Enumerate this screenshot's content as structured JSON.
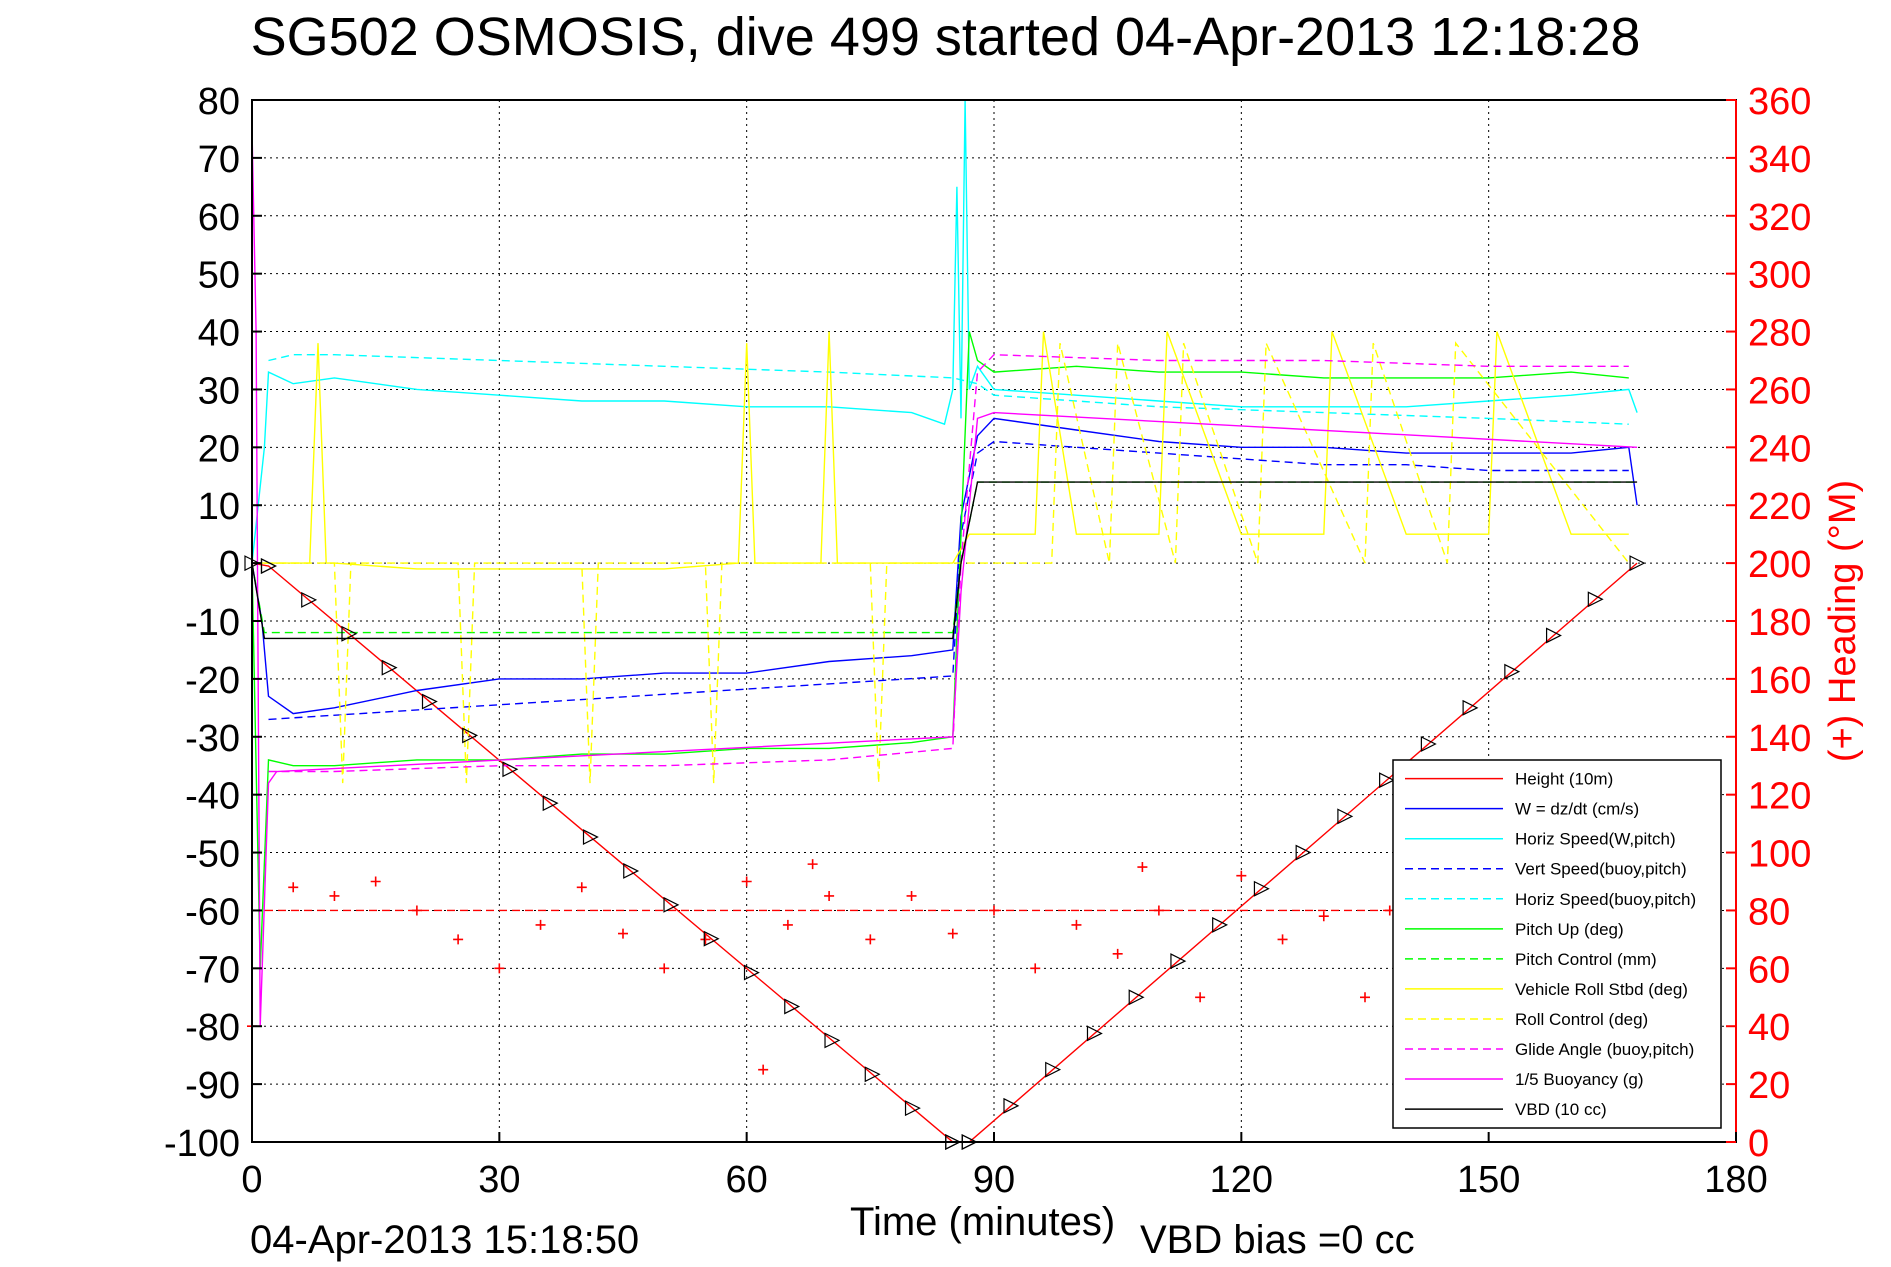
{
  "chart_data": {
    "type": "line",
    "title": "SG502 OSMOSIS, dive 499 started 04-Apr-2013 12:18:28",
    "xlabel": "Time (minutes)",
    "ylabel": "",
    "y2label": "(+) Heading (°M)",
    "xlim": [
      0,
      180
    ],
    "ylim": [
      -100,
      80
    ],
    "y2lim": [
      0,
      360
    ],
    "x_ticks": [
      "0",
      "30",
      "60",
      "90",
      "120",
      "150",
      "180"
    ],
    "y_ticks": [
      "80",
      "70",
      "60",
      "50",
      "40",
      "30",
      "20",
      "10",
      "0",
      "-10",
      "-20",
      "-30",
      "-40",
      "-50",
      "-60",
      "-70",
      "-80",
      "-90",
      "-100"
    ],
    "y2_ticks": [
      "360",
      "340",
      "320",
      "300",
      "280",
      "260",
      "240",
      "220",
      "200",
      "180",
      "160",
      "140",
      "120",
      "100",
      "80",
      "60",
      "40",
      "20",
      "0"
    ],
    "grid": true,
    "legend_position": "lower-right",
    "annotations": {
      "timestamp": "04-Apr-2013 15:18:50",
      "vbd_bias": "VBD bias =0 cc"
    },
    "series": [
      {
        "name": "Height (10m)",
        "color": "#ff0000",
        "style": "solid",
        "x": [
          0,
          2,
          85,
          87,
          168
        ],
        "y": [
          0,
          -0.5,
          -100,
          -100,
          0
        ]
      },
      {
        "name": "W = dz/dt (cm/s)",
        "color": "#0000ff",
        "style": "solid",
        "x": [
          0,
          1.2,
          2,
          5,
          10,
          20,
          30,
          40,
          50,
          60,
          70,
          80,
          85,
          86,
          88,
          90,
          100,
          110,
          120,
          130,
          140,
          150,
          160,
          167,
          168
        ],
        "y": [
          0,
          -10,
          -23,
          -26,
          -25,
          -22,
          -20,
          -20,
          -19,
          -19,
          -17,
          -16,
          -15,
          8,
          22,
          25,
          23,
          21,
          20,
          20,
          19,
          19,
          19,
          20,
          10
        ]
      },
      {
        "name": "Horiz Speed(W,pitch)",
        "color": "#00ffff",
        "style": "solid",
        "x": [
          0,
          1.5,
          2,
          5,
          10,
          20,
          30,
          40,
          50,
          60,
          70,
          80,
          84,
          85,
          85.5,
          86,
          86.5,
          87,
          88,
          90,
          100,
          110,
          120,
          130,
          140,
          150,
          160,
          167,
          168
        ],
        "y": [
          0,
          20,
          33,
          31,
          32,
          30,
          29,
          28,
          28,
          27,
          27,
          26,
          24,
          30,
          65,
          25,
          80,
          30,
          34,
          30,
          29,
          28,
          27,
          27,
          27,
          28,
          29,
          30,
          26
        ]
      },
      {
        "name": "Vert Speed(buoy,pitch)",
        "color": "#0000ff",
        "style": "dashed",
        "x": [
          2,
          85,
          86,
          88,
          90,
          100,
          110,
          120,
          130,
          140,
          150,
          160,
          167
        ],
        "y": [
          -27,
          -19.5,
          5,
          19,
          21,
          20,
          19,
          18,
          17,
          17,
          16,
          16,
          16
        ]
      },
      {
        "name": "Horiz Speed(buoy,pitch)",
        "color": "#00ffff",
        "style": "dashed",
        "x": [
          2,
          5,
          10,
          30,
          50,
          70,
          85,
          88,
          90,
          110,
          130,
          150,
          167
        ],
        "y": [
          35,
          36,
          36,
          35,
          34,
          33,
          32,
          31,
          29,
          27,
          26,
          25,
          24
        ]
      },
      {
        "name": "Pitch Up (deg)",
        "color": "#00ff00",
        "style": "solid",
        "x": [
          0,
          1,
          2,
          5,
          10,
          20,
          30,
          40,
          50,
          60,
          70,
          80,
          85,
          86,
          87,
          88,
          90,
          100,
          110,
          120,
          130,
          140,
          150,
          160,
          167
        ],
        "y": [
          0,
          -70,
          -34,
          -35,
          -35,
          -34,
          -34,
          -33,
          -33,
          -32,
          -32,
          -31,
          -30,
          5,
          40,
          35,
          33,
          34,
          33,
          33,
          32,
          32,
          32,
          33,
          32
        ]
      },
      {
        "name": "Pitch Control (mm)",
        "color": "#00ff00",
        "style": "dashed",
        "x": [
          0,
          1.5,
          2,
          85,
          86,
          88,
          168
        ],
        "y": [
          0,
          -12,
          -12,
          -12,
          0,
          14,
          14
        ]
      },
      {
        "name": "Vehicle Roll Stbd (deg)",
        "color": "#ffff00",
        "style": "solid",
        "x": [
          0,
          7,
          8,
          9,
          10,
          20,
          30,
          50,
          59,
          60,
          61,
          69,
          70,
          71,
          85,
          87,
          90,
          95,
          96,
          100,
          101,
          110,
          111,
          120,
          121,
          130,
          131,
          140,
          141,
          150,
          151,
          160,
          161,
          167
        ],
        "y": [
          0,
          0,
          38,
          0,
          0,
          -1,
          -1,
          -1,
          0,
          38,
          0,
          0,
          40,
          0,
          0,
          5,
          5,
          5,
          40,
          5,
          5,
          5,
          40,
          5,
          5,
          5,
          40,
          5,
          5,
          5,
          40,
          5,
          5,
          5
        ]
      },
      {
        "name": "Roll Control (deg)",
        "color": "#ffff00",
        "style": "dashed",
        "x": [
          0,
          2,
          10,
          11,
          12,
          25,
          26,
          27,
          40,
          41,
          42,
          55,
          56,
          57,
          75,
          76,
          77,
          85,
          90,
          97,
          98,
          104,
          105,
          112,
          113,
          122,
          123,
          135,
          136,
          145,
          146,
          167
        ],
        "y": [
          0,
          0,
          0,
          -38,
          0,
          0,
          -38,
          0,
          0,
          -38,
          0,
          0,
          -38,
          0,
          0,
          -38,
          0,
          0,
          0,
          0,
          38,
          0,
          38,
          0,
          38,
          0,
          38,
          0,
          38,
          0,
          38,
          0
        ]
      },
      {
        "name": "Glide Angle (buoy,pitch)",
        "color": "#ff00ff",
        "style": "dashed",
        "x": [
          2,
          10,
          30,
          50,
          70,
          85,
          86,
          88,
          90,
          110,
          130,
          150,
          167
        ],
        "y": [
          -36,
          -36,
          -35,
          -35,
          -34,
          -32,
          0,
          33,
          36,
          35,
          35,
          34,
          34
        ]
      },
      {
        "name": "1/5 Buoyancy (g)",
        "color": "#ff00ff",
        "style": "solid",
        "x": [
          0,
          0.5,
          1,
          2,
          3,
          85,
          86,
          88,
          90,
          168
        ],
        "y": [
          75,
          40,
          -80,
          -38,
          -36,
          -30,
          -5,
          25,
          26,
          20
        ]
      },
      {
        "name": "VBD (10 cc)",
        "color": "#000000",
        "style": "solid",
        "x": [
          0,
          1.5,
          2,
          85,
          86,
          88,
          90,
          168
        ],
        "y": [
          0,
          -13,
          -13,
          -13,
          0,
          14,
          14,
          14
        ]
      },
      {
        "name": "",
        "color": "#ff0000",
        "style": "dashed",
        "axis": "right",
        "x": [
          0,
          140
        ],
        "y": [
          80,
          80
        ]
      },
      {
        "name": "",
        "color": "#ff0000",
        "style": "markers",
        "axis": "right",
        "x": [
          0,
          5,
          10,
          15,
          20,
          25,
          30,
          35,
          40,
          45,
          50,
          55,
          60,
          62,
          65,
          68,
          70,
          75,
          80,
          85,
          90,
          95,
          100,
          105,
          108,
          110,
          115,
          120,
          125,
          130,
          135,
          138
        ],
        "y": [
          40,
          88,
          85,
          90,
          80,
          70,
          60,
          75,
          88,
          72,
          60,
          70,
          90,
          25,
          75,
          96,
          85,
          70,
          85,
          72,
          80,
          60,
          75,
          65,
          95,
          80,
          50,
          92,
          70,
          78,
          50,
          80
        ]
      }
    ]
  }
}
